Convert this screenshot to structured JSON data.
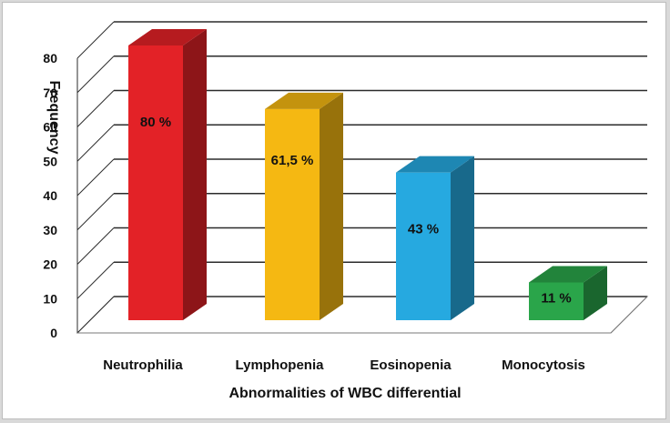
{
  "chart_data": {
    "type": "bar",
    "style": "3d-column",
    "title": "",
    "xlabel": "Abnormalities of WBC differential",
    "ylabel": "Frequency",
    "categories": [
      "Neutrophilia",
      "Lymphopenia",
      "Eosinopenia",
      "Monocytosis"
    ],
    "values": [
      80,
      61.5,
      43,
      11
    ],
    "data_labels": [
      "80 %",
      "61,5 %",
      "43 %",
      "11 %"
    ],
    "ylim": [
      0,
      80
    ],
    "yticks": [
      "0",
      "10",
      "20",
      "30",
      "40",
      "50",
      "60",
      "70",
      "80"
    ],
    "grid": true,
    "legend": "none",
    "colors": {
      "bars": [
        "#e32227",
        "#f5b812",
        "#26a9e0",
        "#2aa54a"
      ],
      "grid": "#2b2b2b",
      "floor": "#ffffff",
      "text": "#111111"
    }
  }
}
